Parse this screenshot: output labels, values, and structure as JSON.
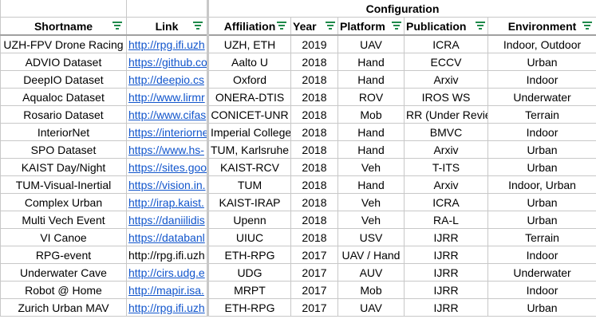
{
  "header": {
    "group_label": "Configuration",
    "columns": [
      "Shortname",
      "Link",
      "Affiliation",
      "Year",
      "Platform",
      "Publication",
      "Environment"
    ]
  },
  "rows": [
    {
      "shortname": "UZH-FPV Drone Racing",
      "link": "http://rpg.ifi.uzh",
      "affiliation": "UZH, ETH",
      "year": "2019",
      "platform": "UAV",
      "publication": "ICRA",
      "environment": "Indoor, Outdoor"
    },
    {
      "shortname": "ADVIO Dataset",
      "link": "https://github.co",
      "affiliation": "Aalto U",
      "year": "2018",
      "platform": "Hand",
      "publication": "ECCV",
      "environment": "Urban"
    },
    {
      "shortname": "DeepIO Dataset",
      "link": "http://deepio.cs",
      "affiliation": "Oxford",
      "year": "2018",
      "platform": "Hand",
      "publication": "Arxiv",
      "environment": "Indoor"
    },
    {
      "shortname": "Aqualoc Dataset",
      "link": "http://www.lirmr",
      "affiliation": "ONERA-DTIS",
      "year": "2018",
      "platform": "ROV",
      "publication": "IROS WS",
      "environment": "Underwater"
    },
    {
      "shortname": "Rosario Dataset",
      "link": "http://www.cifas",
      "affiliation": "CONICET-UNR",
      "year": "2018",
      "platform": "Mob",
      "publication": "RR (Under Revie",
      "environment": "Terrain"
    },
    {
      "shortname": "InteriorNet",
      "link": "https://interiorne",
      "affiliation": "Imperial College",
      "year": "2018",
      "platform": "Hand",
      "publication": "BMVC",
      "environment": "Indoor"
    },
    {
      "shortname": "SPO Dataset",
      "link": "https://www.hs-",
      "affiliation": "TUM, Karlsruhe",
      "year": "2018",
      "platform": "Hand",
      "publication": "Arxiv",
      "environment": "Urban"
    },
    {
      "shortname": "KAIST Day/Night",
      "link": "https://sites.goo",
      "affiliation": "KAIST-RCV",
      "year": "2018",
      "platform": "Veh",
      "publication": "T-ITS",
      "environment": "Urban"
    },
    {
      "shortname": "TUM-Visual-Inertial",
      "link": "https://vision.in.",
      "affiliation": "TUM",
      "year": "2018",
      "platform": "Hand",
      "publication": "Arxiv",
      "environment": "Indoor, Urban"
    },
    {
      "shortname": "Complex Urban",
      "link": "http://irap.kaist.",
      "affiliation": "KAIST-IRAP",
      "year": "2018",
      "platform": "Veh",
      "publication": "ICRA",
      "environment": "Urban"
    },
    {
      "shortname": "Multi Vech Event",
      "link": "https://daniilidis",
      "affiliation": "Upenn",
      "year": "2018",
      "platform": "Veh",
      "publication": "RA-L",
      "environment": "Urban"
    },
    {
      "shortname": "VI Canoe",
      "link": "https://databanl",
      "affiliation": "UIUC",
      "year": "2018",
      "platform": "USV",
      "publication": "IJRR",
      "environment": "Terrain"
    },
    {
      "shortname": "RPG-event",
      "link": "http://rpg.ifi.uzh",
      "affiliation": "ETH-RPG",
      "year": "2017",
      "platform": "UAV / Hand",
      "publication": "IJRR",
      "environment": "Indoor"
    },
    {
      "shortname": "Underwater Cave",
      "link": "http://cirs.udg.e",
      "affiliation": "UDG",
      "year": "2017",
      "platform": "AUV",
      "publication": "IJRR",
      "environment": "Underwater"
    },
    {
      "shortname": "Robot @ Home",
      "link": "http://mapir.isa.",
      "affiliation": "MRPT",
      "year": "2017",
      "platform": "Mob",
      "publication": "IJRR",
      "environment": "Indoor"
    },
    {
      "shortname": "Zurich Urban MAV",
      "link": "http://rpg.ifi.uzh",
      "affiliation": "ETH-RPG",
      "year": "2017",
      "platform": "UAV",
      "publication": "IJRR",
      "environment": "Urban"
    }
  ],
  "plain_link_rows": [
    12
  ],
  "colors": {
    "filter_icon": "#1e8a4a",
    "link": "#1155cc",
    "grid": "#c8c8c8"
  }
}
